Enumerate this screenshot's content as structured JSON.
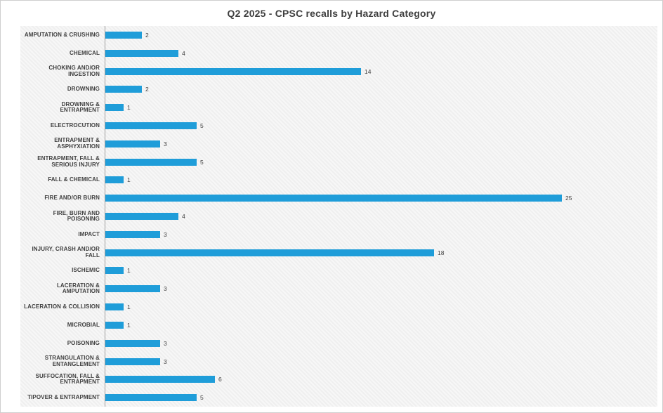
{
  "page": {
    "title": "Q2 2025 - CPSC recalls by Hazard Category"
  },
  "chart_data": {
    "type": "bar",
    "orientation": "horizontal",
    "title": "Q2 2025 - CPSC recalls by Hazard Category",
    "categories": [
      "AMPUTATION & CRUSHING",
      "CHEMICAL",
      "CHOKING AND/OR INGESTION",
      "DROWNING",
      "DROWNING & ENTRAPMENT",
      "ELECTROCUTION",
      "ENTRAPMENT & ASPHYXIATION",
      "ENTRAPMENT, FALL & SERIOUS INJURY",
      "FALL & CHEMICAL",
      "FIRE AND/OR BURN",
      "FIRE, BURN AND POISONING",
      "IMPACT",
      "INJURY, CRASH AND/OR FALL",
      "ISCHEMIC",
      "LACERATION & AMPUTATION",
      "LACERATION & COLLISION",
      "MICROBIAL",
      "POISONING",
      "STRANGULATION & ENTANGLEMENT",
      "SUFFOCATION, FALL & ENTRAPMENT",
      "TIPOVER & ENTRAPMENT"
    ],
    "values": [
      2,
      4,
      14,
      2,
      1,
      5,
      3,
      5,
      1,
      25,
      4,
      3,
      18,
      1,
      3,
      1,
      1,
      3,
      3,
      6,
      5
    ],
    "xlim": [
      0,
      25
    ],
    "value_labels": true,
    "grid": false,
    "legend": false,
    "colors": {
      "bar": "#1F9DD9",
      "title_text": "#404040",
      "label_text": "#404040",
      "axis_line": "#9e9e9e"
    }
  }
}
